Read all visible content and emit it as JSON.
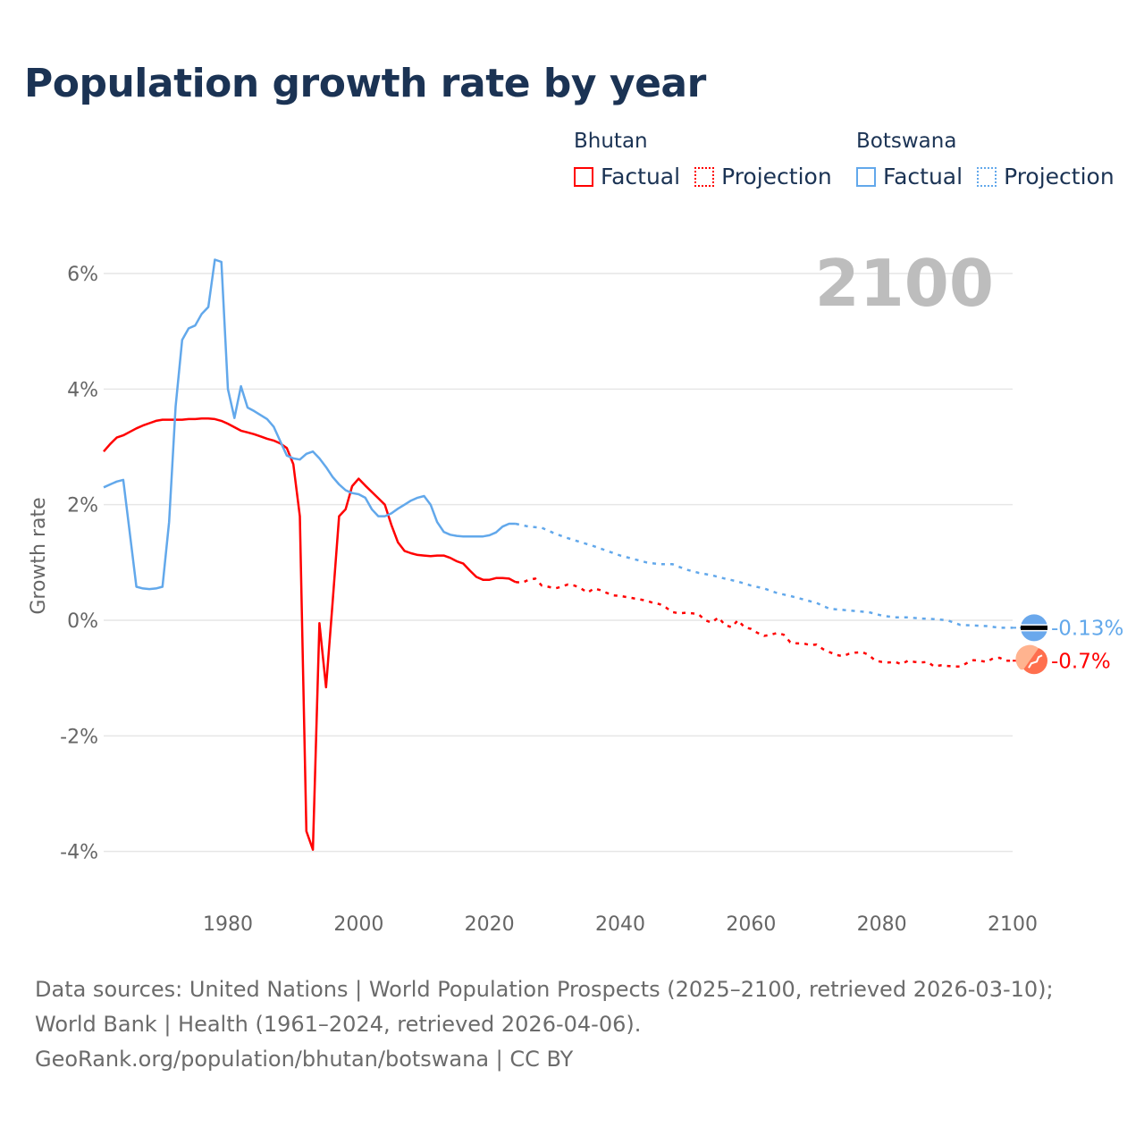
{
  "title": "Population growth rate by year",
  "legend": {
    "groups": [
      {
        "name": "Bhutan",
        "factual": "Factual",
        "projection": "Projection",
        "color": "#ff0000"
      },
      {
        "name": "Botswana",
        "factual": "Factual",
        "projection": "Projection",
        "color": "#62a8eb"
      }
    ]
  },
  "footer": {
    "sources": "Data sources: United Nations | World Population Prospects (2025–2100, retrieved 2026-03-10); World Bank | Health (1961–2024, retrieved 2026-04-06).",
    "credit": "GeoRank.org/population/bhutan/botswana | CC BY"
  },
  "chart_data": {
    "type": "line",
    "title": "Population growth rate by year",
    "xlabel": "",
    "ylabel": "Growth rate",
    "year_label": "2100",
    "xlim": [
      1961,
      2100
    ],
    "ylim": [
      -4.8,
      6.6
    ],
    "xticks": [
      1980,
      2000,
      2020,
      2040,
      2060,
      2080,
      2100
    ],
    "xtick_labels": [
      "1980",
      "2000",
      "2020",
      "2040",
      "2060",
      "2080",
      "2100"
    ],
    "yticks": [
      6,
      4,
      2,
      0,
      -2,
      -4
    ],
    "ytick_labels": [
      "6%",
      "4%",
      "2%",
      "0%",
      "-2%",
      "-4%"
    ],
    "grid": true,
    "legend_position": "top-right",
    "series": [
      {
        "name": "Bhutan",
        "color": "#ff0000",
        "end_label": "-0.7%",
        "flag": "bhutan-flag",
        "factual": [
          [
            1961,
            2.92
          ],
          [
            1962,
            3.05
          ],
          [
            1963,
            3.16
          ],
          [
            1964,
            3.2
          ],
          [
            1965,
            3.26
          ],
          [
            1966,
            3.32
          ],
          [
            1967,
            3.37
          ],
          [
            1968,
            3.41
          ],
          [
            1969,
            3.45
          ],
          [
            1970,
            3.47
          ],
          [
            1971,
            3.47
          ],
          [
            1972,
            3.47
          ],
          [
            1973,
            3.47
          ],
          [
            1974,
            3.48
          ],
          [
            1975,
            3.48
          ],
          [
            1976,
            3.49
          ],
          [
            1977,
            3.49
          ],
          [
            1978,
            3.48
          ],
          [
            1979,
            3.45
          ],
          [
            1980,
            3.4
          ],
          [
            1981,
            3.34
          ],
          [
            1982,
            3.28
          ],
          [
            1983,
            3.25
          ],
          [
            1984,
            3.22
          ],
          [
            1985,
            3.18
          ],
          [
            1986,
            3.14
          ],
          [
            1987,
            3.11
          ],
          [
            1988,
            3.06
          ],
          [
            1989,
            2.98
          ],
          [
            1990,
            2.7
          ],
          [
            1991,
            1.8
          ],
          [
            1992,
            -3.65
          ],
          [
            1993,
            -3.97
          ],
          [
            1994,
            -0.05
          ],
          [
            1995,
            -1.16
          ],
          [
            1996,
            0.3
          ],
          [
            1997,
            1.8
          ],
          [
            1998,
            1.92
          ],
          [
            1999,
            2.32
          ],
          [
            2000,
            2.45
          ],
          [
            2001,
            2.33
          ],
          [
            2002,
            2.22
          ],
          [
            2003,
            2.11
          ],
          [
            2004,
            2.0
          ],
          [
            2005,
            1.65
          ],
          [
            2006,
            1.35
          ],
          [
            2007,
            1.2
          ],
          [
            2008,
            1.16
          ],
          [
            2009,
            1.13
          ],
          [
            2010,
            1.12
          ],
          [
            2011,
            1.11
          ],
          [
            2012,
            1.12
          ],
          [
            2013,
            1.12
          ],
          [
            2014,
            1.08
          ],
          [
            2015,
            1.02
          ],
          [
            2016,
            0.98
          ],
          [
            2017,
            0.86
          ],
          [
            2018,
            0.75
          ],
          [
            2019,
            0.7
          ],
          [
            2020,
            0.7
          ],
          [
            2021,
            0.73
          ],
          [
            2022,
            0.73
          ],
          [
            2023,
            0.72
          ],
          [
            2024,
            0.66
          ]
        ],
        "projection": [
          [
            2024,
            0.66
          ],
          [
            2025,
            0.65
          ],
          [
            2026,
            0.7
          ],
          [
            2027,
            0.72
          ],
          [
            2028,
            0.6
          ],
          [
            2029,
            0.58
          ],
          [
            2030,
            0.55
          ],
          [
            2031,
            0.58
          ],
          [
            2032,
            0.62
          ],
          [
            2033,
            0.6
          ],
          [
            2034,
            0.55
          ],
          [
            2035,
            0.48
          ],
          [
            2036,
            0.55
          ],
          [
            2037,
            0.52
          ],
          [
            2038,
            0.47
          ],
          [
            2039,
            0.43
          ],
          [
            2040,
            0.42
          ],
          [
            2041,
            0.4
          ],
          [
            2042,
            0.38
          ],
          [
            2043,
            0.36
          ],
          [
            2044,
            0.34
          ],
          [
            2045,
            0.3
          ],
          [
            2046,
            0.28
          ],
          [
            2047,
            0.22
          ],
          [
            2048,
            0.14
          ],
          [
            2049,
            0.12
          ],
          [
            2050,
            0.13
          ],
          [
            2051,
            0.12
          ],
          [
            2052,
            0.1
          ],
          [
            2053,
            0.0
          ],
          [
            2054,
            -0.04
          ],
          [
            2055,
            0.05
          ],
          [
            2056,
            -0.08
          ],
          [
            2057,
            -0.12
          ],
          [
            2058,
            0.0
          ],
          [
            2059,
            -0.12
          ],
          [
            2060,
            -0.15
          ],
          [
            2061,
            -0.22
          ],
          [
            2062,
            -0.27
          ],
          [
            2063,
            -0.25
          ],
          [
            2064,
            -0.22
          ],
          [
            2065,
            -0.25
          ],
          [
            2066,
            -0.38
          ],
          [
            2067,
            -0.4
          ],
          [
            2068,
            -0.4
          ],
          [
            2069,
            -0.43
          ],
          [
            2070,
            -0.42
          ],
          [
            2071,
            -0.5
          ],
          [
            2072,
            -0.55
          ],
          [
            2073,
            -0.6
          ],
          [
            2074,
            -0.62
          ],
          [
            2075,
            -0.58
          ],
          [
            2076,
            -0.56
          ],
          [
            2077,
            -0.55
          ],
          [
            2078,
            -0.6
          ],
          [
            2079,
            -0.7
          ],
          [
            2080,
            -0.72
          ],
          [
            2081,
            -0.73
          ],
          [
            2082,
            -0.72
          ],
          [
            2083,
            -0.76
          ],
          [
            2084,
            -0.7
          ],
          [
            2085,
            -0.72
          ],
          [
            2086,
            -0.73
          ],
          [
            2087,
            -0.72
          ],
          [
            2088,
            -0.8
          ],
          [
            2089,
            -0.78
          ],
          [
            2090,
            -0.79
          ],
          [
            2091,
            -0.8
          ],
          [
            2092,
            -0.8
          ],
          [
            2093,
            -0.74
          ],
          [
            2094,
            -0.69
          ],
          [
            2095,
            -0.7
          ],
          [
            2096,
            -0.72
          ],
          [
            2097,
            -0.66
          ],
          [
            2098,
            -0.65
          ],
          [
            2099,
            -0.7
          ],
          [
            2100,
            -0.7
          ]
        ]
      },
      {
        "name": "Botswana",
        "color": "#62a8eb",
        "end_label": "-0.13%",
        "flag": "botswana-flag",
        "factual": [
          [
            1961,
            2.3
          ],
          [
            1962,
            2.35
          ],
          [
            1963,
            2.4
          ],
          [
            1964,
            2.43
          ],
          [
            1965,
            1.5
          ],
          [
            1966,
            0.58
          ],
          [
            1967,
            0.55
          ],
          [
            1968,
            0.54
          ],
          [
            1969,
            0.55
          ],
          [
            1970,
            0.58
          ],
          [
            1971,
            1.7
          ],
          [
            1972,
            3.7
          ],
          [
            1973,
            4.85
          ],
          [
            1974,
            5.05
          ],
          [
            1975,
            5.1
          ],
          [
            1976,
            5.3
          ],
          [
            1977,
            5.42
          ],
          [
            1978,
            6.24
          ],
          [
            1979,
            6.2
          ],
          [
            1980,
            4.0
          ],
          [
            1981,
            3.5
          ],
          [
            1982,
            4.05
          ],
          [
            1983,
            3.68
          ],
          [
            1984,
            3.62
          ],
          [
            1985,
            3.55
          ],
          [
            1986,
            3.48
          ],
          [
            1987,
            3.35
          ],
          [
            1988,
            3.1
          ],
          [
            1989,
            2.85
          ],
          [
            1990,
            2.8
          ],
          [
            1991,
            2.78
          ],
          [
            1992,
            2.88
          ],
          [
            1993,
            2.92
          ],
          [
            1994,
            2.8
          ],
          [
            1995,
            2.65
          ],
          [
            1996,
            2.48
          ],
          [
            1997,
            2.35
          ],
          [
            1998,
            2.25
          ],
          [
            1999,
            2.2
          ],
          [
            2000,
            2.18
          ],
          [
            2001,
            2.12
          ],
          [
            2002,
            1.92
          ],
          [
            2003,
            1.8
          ],
          [
            2004,
            1.8
          ],
          [
            2005,
            1.85
          ],
          [
            2006,
            1.93
          ],
          [
            2007,
            2.0
          ],
          [
            2008,
            2.07
          ],
          [
            2009,
            2.12
          ],
          [
            2010,
            2.15
          ],
          [
            2011,
            2.0
          ],
          [
            2012,
            1.7
          ],
          [
            2013,
            1.53
          ],
          [
            2014,
            1.48
          ],
          [
            2015,
            1.46
          ],
          [
            2016,
            1.45
          ],
          [
            2017,
            1.45
          ],
          [
            2018,
            1.45
          ],
          [
            2019,
            1.45
          ],
          [
            2020,
            1.47
          ],
          [
            2021,
            1.52
          ],
          [
            2022,
            1.62
          ],
          [
            2023,
            1.67
          ],
          [
            2024,
            1.67
          ]
        ],
        "projection": [
          [
            2024,
            1.67
          ],
          [
            2026,
            1.62
          ],
          [
            2028,
            1.6
          ],
          [
            2030,
            1.5
          ],
          [
            2032,
            1.42
          ],
          [
            2034,
            1.35
          ],
          [
            2036,
            1.28
          ],
          [
            2038,
            1.2
          ],
          [
            2040,
            1.12
          ],
          [
            2042,
            1.06
          ],
          [
            2044,
            1.0
          ],
          [
            2046,
            0.97
          ],
          [
            2048,
            0.97
          ],
          [
            2050,
            0.88
          ],
          [
            2052,
            0.82
          ],
          [
            2054,
            0.78
          ],
          [
            2056,
            0.72
          ],
          [
            2058,
            0.67
          ],
          [
            2060,
            0.6
          ],
          [
            2062,
            0.55
          ],
          [
            2064,
            0.47
          ],
          [
            2066,
            0.42
          ],
          [
            2068,
            0.36
          ],
          [
            2070,
            0.3
          ],
          [
            2072,
            0.2
          ],
          [
            2074,
            0.18
          ],
          [
            2076,
            0.16
          ],
          [
            2078,
            0.14
          ],
          [
            2080,
            0.08
          ],
          [
            2082,
            0.05
          ],
          [
            2084,
            0.05
          ],
          [
            2086,
            0.03
          ],
          [
            2088,
            0.02
          ],
          [
            2090,
            0.0
          ],
          [
            2092,
            -0.08
          ],
          [
            2094,
            -0.09
          ],
          [
            2096,
            -0.1
          ],
          [
            2098,
            -0.13
          ],
          [
            2100,
            -0.13
          ]
        ]
      }
    ]
  }
}
